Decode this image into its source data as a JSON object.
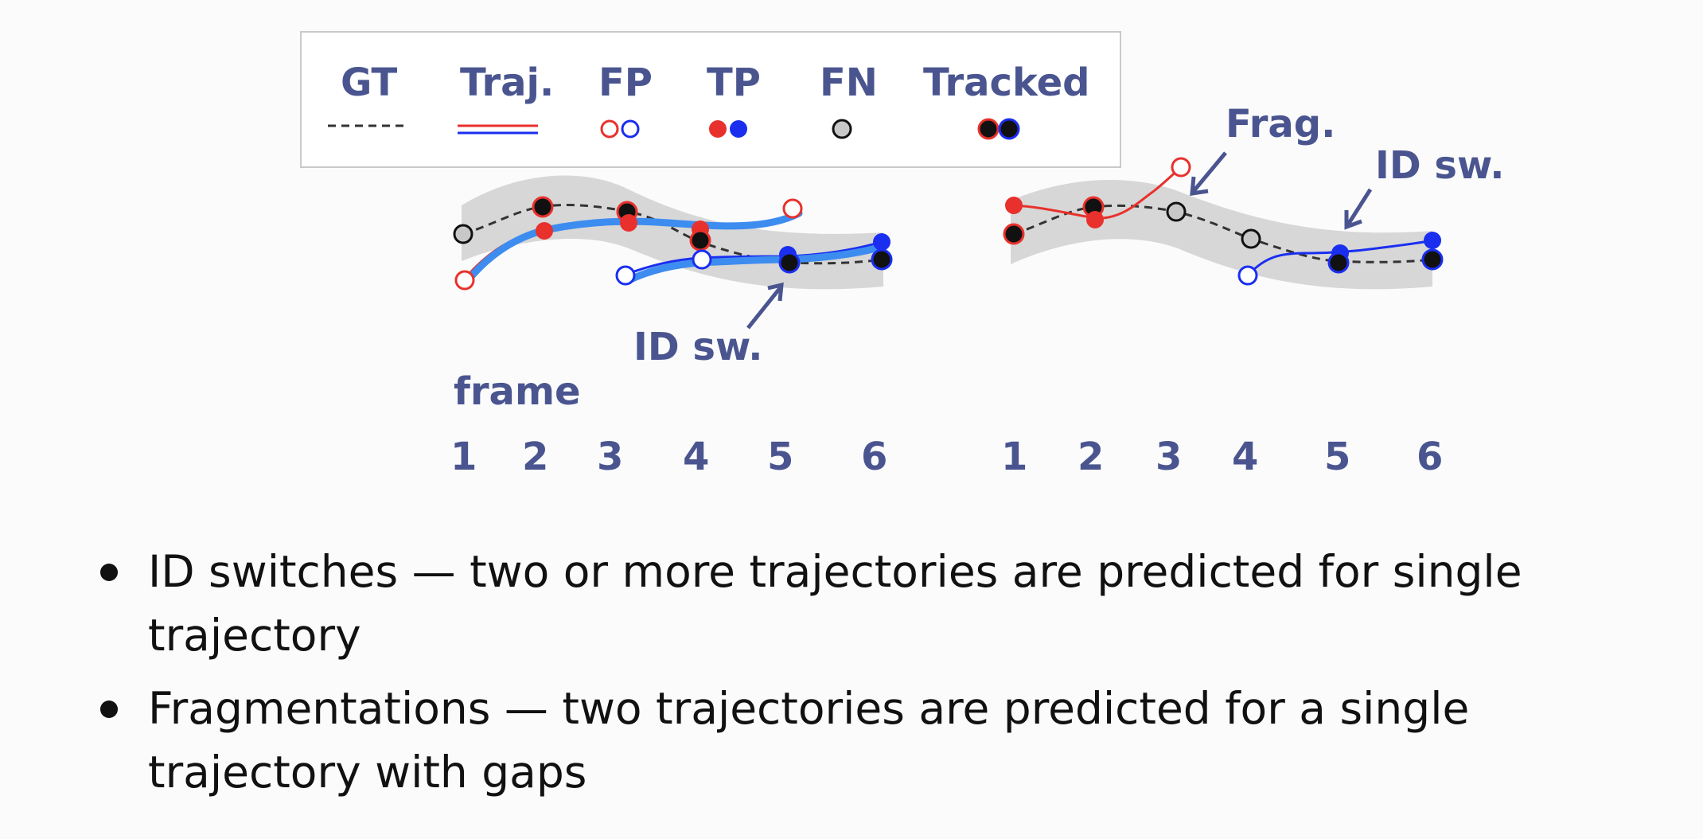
{
  "legend": {
    "gt": "GT",
    "traj": "Traj.",
    "fp": "FP",
    "tp": "TP",
    "fn": "FN",
    "tracked": "Tracked"
  },
  "left_panel": {
    "id_switch_label": "ID sw.",
    "frame_label": "frame",
    "frames": [
      "1",
      "2",
      "3",
      "4",
      "5",
      "6"
    ]
  },
  "right_panel": {
    "frag_label": "Frag.",
    "id_switch_label": "ID sw.",
    "frames": [
      "1",
      "2",
      "3",
      "4",
      "5",
      "6"
    ]
  },
  "bullets": [
    "ID switches — two or more trajectories are predicted for single trajectory",
    "Fragmentations — two trajectories are predicted for a single trajectory with gaps"
  ],
  "colors": {
    "label": "#4a5590",
    "red": "#e8312c",
    "blue": "#1a2ef0",
    "bright_blue": "#3d8cf0",
    "band": "#d7d7d7",
    "fn_fill": "#c8c8c8"
  }
}
